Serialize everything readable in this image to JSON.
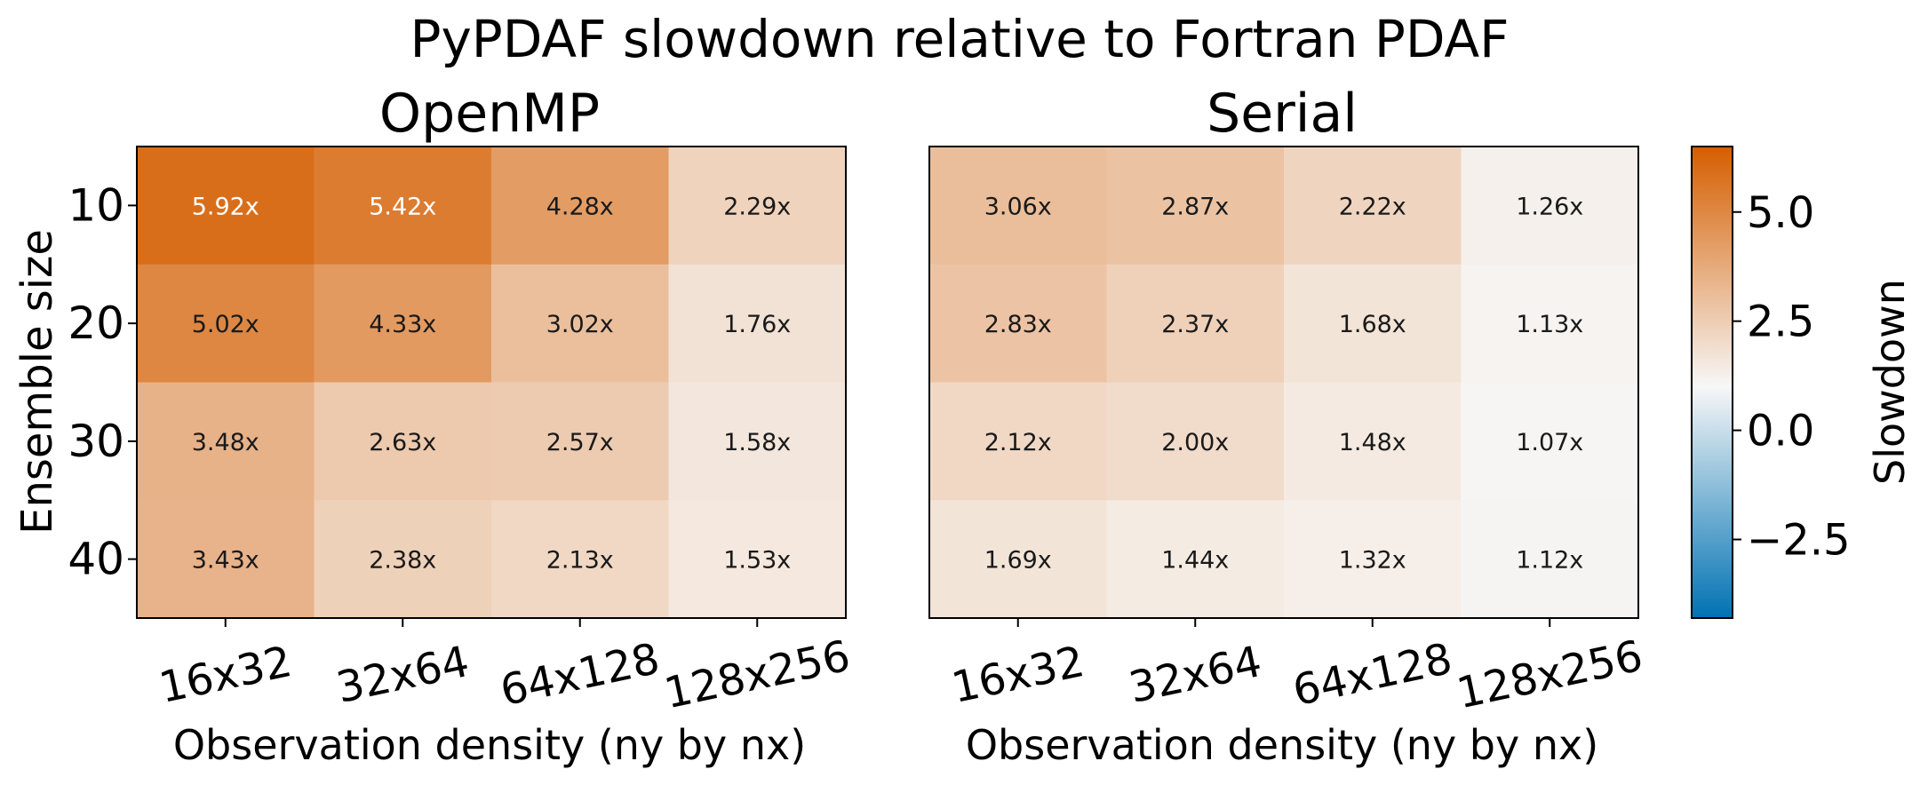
{
  "chart_data": {
    "type": "heatmap",
    "title": "PyPDAF slowdown relative to Fortran PDAF",
    "ylabel": "Ensemble size",
    "xlabel": "Observation density (ny by nx)",
    "rows": [
      "10",
      "20",
      "30",
      "40"
    ],
    "columns": [
      "16x32",
      "32x64",
      "64x128",
      "128x256"
    ],
    "panels": [
      {
        "name": "OpenMP",
        "values": [
          [
            5.92,
            5.42,
            4.28,
            2.29
          ],
          [
            5.02,
            4.33,
            3.02,
            1.76
          ],
          [
            3.48,
            2.63,
            2.57,
            1.58
          ],
          [
            3.43,
            2.38,
            2.13,
            1.53
          ]
        ],
        "labels": [
          [
            "5.92x",
            "5.42x",
            "4.28x",
            "2.29x"
          ],
          [
            "5.02x",
            "4.33x",
            "3.02x",
            "1.76x"
          ],
          [
            "3.48x",
            "2.63x",
            "2.57x",
            "1.58x"
          ],
          [
            "3.43x",
            "2.38x",
            "2.13x",
            "1.53x"
          ]
        ]
      },
      {
        "name": "Serial",
        "values": [
          [
            3.06,
            2.87,
            2.22,
            1.26
          ],
          [
            2.83,
            2.37,
            1.68,
            1.13
          ],
          [
            2.12,
            2.0,
            1.48,
            1.07
          ],
          [
            1.69,
            1.44,
            1.32,
            1.12
          ]
        ],
        "labels": [
          [
            "3.06x",
            "2.87x",
            "2.22x",
            "1.26x"
          ],
          [
            "2.83x",
            "2.37x",
            "1.68x",
            "1.13x"
          ],
          [
            "2.12x",
            "2.00x",
            "1.48x",
            "1.07x"
          ],
          [
            "1.69x",
            "1.44x",
            "1.32x",
            "1.12x"
          ]
        ]
      }
    ],
    "colorbar": {
      "label": "Slowdown",
      "range": [
        -4.3,
        6.5
      ],
      "center": 1.0,
      "ticks": [
        5.0,
        2.5,
        0.0,
        -2.5
      ],
      "tick_labels": [
        "5.0",
        "2.5",
        "0.0",
        "−2.5"
      ],
      "colors": {
        "low": "#0072b2",
        "mid": "#f7f7f7",
        "high": "#d55e00"
      }
    }
  }
}
